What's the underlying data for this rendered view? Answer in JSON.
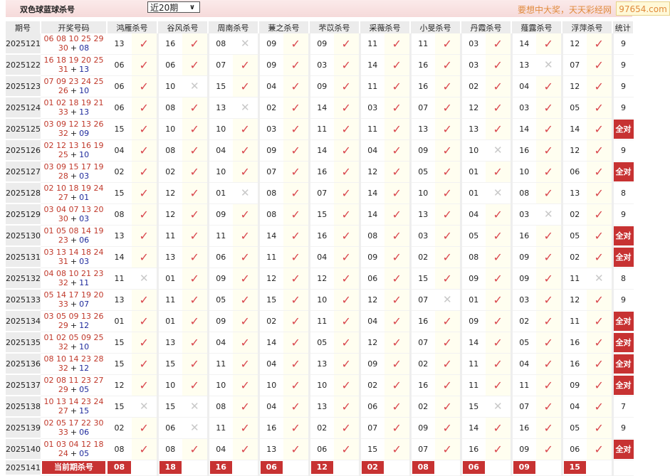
{
  "header": {
    "title": "双色球蓝球杀号",
    "period_select": "近20期",
    "slogan": "要想中大奖，天天彩经网",
    "site": "97654.com"
  },
  "colors": {
    "hit": "#d9474d",
    "miss": "#c8c8c8",
    "badge": "#c73232",
    "red_ball": "#c0392b",
    "blue_ball": "#1f2a9c"
  },
  "table": {
    "columns": [
      "期号",
      "开奖号码",
      "鸿雁杀号",
      "谷风杀号",
      "周南杀号",
      "蒹之杀号",
      "芣苡杀号",
      "采薇杀号",
      "小旻杀号",
      "丹霞杀号",
      "薤露杀号",
      "浮萍杀号",
      "统计"
    ],
    "rows": [
      {
        "period": "2025121",
        "reds": "06 08 10 25 29",
        "reds2": "30",
        "blue": "08",
        "kills": [
          "13",
          "16",
          "08",
          "09",
          "09",
          "11",
          "11",
          "03",
          "14",
          "12"
        ],
        "stat": "9"
      },
      {
        "period": "2025122",
        "reds": "16 18 19 20 25",
        "reds2": "31",
        "blue": "13",
        "kills": [
          "06",
          "06",
          "07",
          "09",
          "03",
          "14",
          "16",
          "03",
          "13",
          "07"
        ],
        "stat": "9"
      },
      {
        "period": "2025123",
        "reds": "07 09 23 24 25",
        "reds2": "26",
        "blue": "10",
        "kills": [
          "06",
          "10",
          "15",
          "04",
          "09",
          "11",
          "16",
          "02",
          "04",
          "12"
        ],
        "stat": "9"
      },
      {
        "period": "2025124",
        "reds": "01 02 18 19 21",
        "reds2": "33",
        "blue": "13",
        "kills": [
          "06",
          "08",
          "13",
          "02",
          "14",
          "03",
          "07",
          "12",
          "03",
          "05"
        ],
        "stat": "9"
      },
      {
        "period": "2025125",
        "reds": "03 09 12 13 26",
        "reds2": "32",
        "blue": "09",
        "kills": [
          "15",
          "10",
          "10",
          "03",
          "11",
          "11",
          "13",
          "13",
          "14",
          "14"
        ],
        "stat": "全对"
      },
      {
        "period": "2025126",
        "reds": "02 12 13 16 19",
        "reds2": "25",
        "blue": "10",
        "kills": [
          "04",
          "08",
          "04",
          "09",
          "14",
          "04",
          "09",
          "10",
          "16",
          "12"
        ],
        "stat": "9"
      },
      {
        "period": "2025127",
        "reds": "03 09 15 17 19",
        "reds2": "28",
        "blue": "03",
        "kills": [
          "02",
          "02",
          "10",
          "07",
          "16",
          "12",
          "05",
          "01",
          "10",
          "06"
        ],
        "stat": "全对"
      },
      {
        "period": "2025128",
        "reds": "02 10 18 19 24",
        "reds2": "27",
        "blue": "01",
        "kills": [
          "15",
          "12",
          "01",
          "08",
          "07",
          "14",
          "10",
          "01",
          "08",
          "13"
        ],
        "stat": "8"
      },
      {
        "period": "2025129",
        "reds": "03 04 07 13 20",
        "reds2": "30",
        "blue": "03",
        "kills": [
          "08",
          "12",
          "09",
          "08",
          "15",
          "14",
          "13",
          "04",
          "03",
          "02"
        ],
        "stat": "9"
      },
      {
        "period": "2025130",
        "reds": "01 05 08 14 19",
        "reds2": "23",
        "blue": "06",
        "kills": [
          "13",
          "11",
          "11",
          "14",
          "16",
          "08",
          "03",
          "05",
          "16",
          "05"
        ],
        "stat": "全对"
      },
      {
        "period": "2025131",
        "reds": "03 13 14 18 24",
        "reds2": "31",
        "blue": "03",
        "kills": [
          "14",
          "13",
          "06",
          "11",
          "04",
          "09",
          "02",
          "08",
          "09",
          "02"
        ],
        "stat": "全对"
      },
      {
        "period": "2025132",
        "reds": "04 08 10 21 23",
        "reds2": "32",
        "blue": "11",
        "kills": [
          "11",
          "01",
          "09",
          "12",
          "12",
          "06",
          "15",
          "09",
          "09",
          "11"
        ],
        "stat": "8"
      },
      {
        "period": "2025133",
        "reds": "05 14 17 19 20",
        "reds2": "33",
        "blue": "07",
        "kills": [
          "13",
          "11",
          "05",
          "15",
          "10",
          "12",
          "07",
          "01",
          "03",
          "12"
        ],
        "stat": "9"
      },
      {
        "period": "2025134",
        "reds": "03 05 09 13 26",
        "reds2": "29",
        "blue": "12",
        "kills": [
          "01",
          "01",
          "09",
          "02",
          "11",
          "04",
          "16",
          "09",
          "02",
          "11"
        ],
        "stat": "全对"
      },
      {
        "period": "2025135",
        "reds": "01 02 05 09 25",
        "reds2": "32",
        "blue": "10",
        "kills": [
          "15",
          "13",
          "04",
          "14",
          "05",
          "12",
          "07",
          "14",
          "05",
          "16"
        ],
        "stat": "全对"
      },
      {
        "period": "2025136",
        "reds": "08 10 14 23 28",
        "reds2": "32",
        "blue": "12",
        "kills": [
          "15",
          "15",
          "11",
          "04",
          "13",
          "09",
          "02",
          "11",
          "04",
          "16"
        ],
        "stat": "全对"
      },
      {
        "period": "2025137",
        "reds": "02 08 11 23 27",
        "reds2": "29",
        "blue": "05",
        "kills": [
          "12",
          "10",
          "10",
          "10",
          "10",
          "02",
          "16",
          "11",
          "11",
          "09"
        ],
        "stat": "全对"
      },
      {
        "period": "2025138",
        "reds": "10 13 14 23 24",
        "reds2": "27",
        "blue": "15",
        "kills": [
          "15",
          "15",
          "08",
          "04",
          "13",
          "06",
          "02",
          "15",
          "07",
          "04"
        ],
        "stat": "7"
      },
      {
        "period": "2025139",
        "reds": "02 05 17 22 30",
        "reds2": "33",
        "blue": "06",
        "kills": [
          "02",
          "06",
          "11",
          "16",
          "02",
          "07",
          "09",
          "14",
          "16",
          "05"
        ],
        "stat": "9"
      },
      {
        "period": "2025140",
        "reds": "01 03 04 12 18",
        "reds2": "24",
        "blue": "05",
        "kills": [
          "08",
          "08",
          "04",
          "13",
          "06",
          "15",
          "07",
          "16",
          "09",
          "06"
        ],
        "stat": "全对"
      }
    ],
    "current": {
      "period": "2025141",
      "label": "当前期杀号",
      "kills": [
        "08",
        "18",
        "16",
        "06",
        "12",
        "02",
        "08",
        "06",
        "09",
        "15"
      ]
    },
    "plus": "+",
    "hit_glyph": "✓",
    "miss_glyph": "✕"
  }
}
